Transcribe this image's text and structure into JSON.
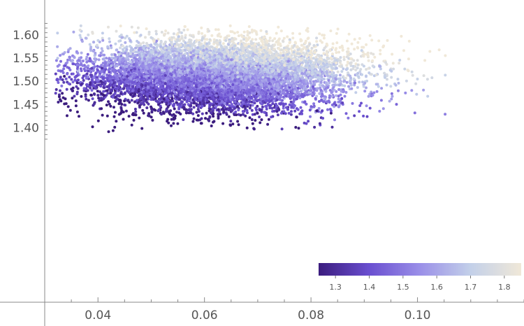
{
  "chart_data": {
    "type": "scatter",
    "title": "",
    "xlabel": "",
    "ylabel": "",
    "xlim": [
      0.03,
      0.12
    ],
    "ylim": [
      1.375,
      1.625
    ],
    "x_ticks": [
      {
        "value": 0.04,
        "label": "0.04"
      },
      {
        "value": 0.06,
        "label": "0.06"
      },
      {
        "value": 0.08,
        "label": "0.08"
      },
      {
        "value": 0.1,
        "label": "0.10"
      }
    ],
    "y_ticks": [
      {
        "value": 1.4,
        "label": "1.40"
      },
      {
        "value": 1.45,
        "label": "1.45"
      },
      {
        "value": 1.5,
        "label": "1.50"
      },
      {
        "value": 1.55,
        "label": "1.55"
      },
      {
        "value": 1.6,
        "label": "1.60"
      }
    ],
    "grid": false,
    "legend_position": "bottom-right",
    "point_cloud": {
      "approx_count": 30000,
      "x_center": 0.062,
      "x_spread": 0.011,
      "y_center": 1.515,
      "y_spread": 0.038,
      "x_range": [
        0.032,
        0.118
      ],
      "y_range": [
        1.37,
        1.62
      ]
    },
    "color_scale": {
      "range": [
        1.25,
        1.85
      ],
      "ticks": [
        {
          "value": 1.3,
          "label": "1.3"
        },
        {
          "value": 1.4,
          "label": "1.4"
        },
        {
          "value": 1.5,
          "label": "1.5"
        },
        {
          "value": 1.6,
          "label": "1.6"
        },
        {
          "value": 1.7,
          "label": "1.7"
        },
        {
          "value": 1.8,
          "label": "1.8"
        }
      ],
      "stops": [
        "#3b1c7e",
        "#6a4fd0",
        "#9a8fe8",
        "#c3d0e9",
        "#f0e8d8"
      ]
    }
  }
}
